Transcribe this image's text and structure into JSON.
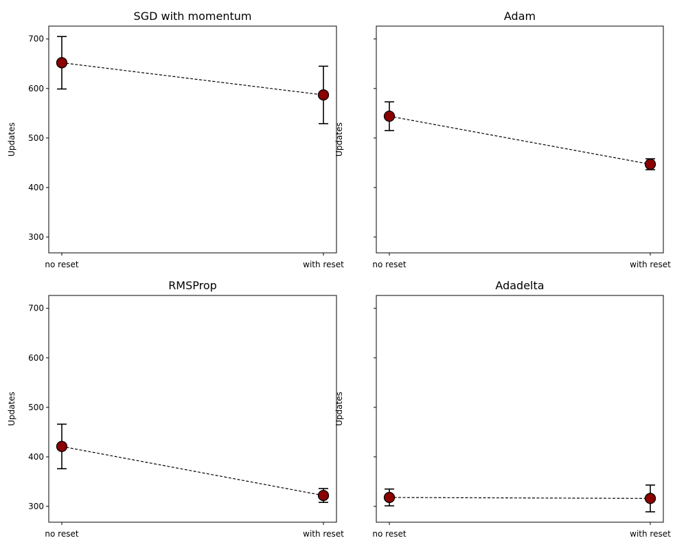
{
  "chart_data": [
    {
      "type": "scatter",
      "title": "SGD with momentum",
      "ylabel": "Updates",
      "categories": [
        "no reset",
        "with reset"
      ],
      "values": [
        652,
        587
      ],
      "errors": [
        53,
        58
      ],
      "ylim": [
        268,
        726
      ],
      "yticks": [
        300,
        400,
        500,
        600,
        700
      ],
      "show_ytick_labels": true,
      "point_color": "#8b0000"
    },
    {
      "type": "scatter",
      "title": "Adam",
      "ylabel": "Updates",
      "categories": [
        "no reset",
        "with reset"
      ],
      "values": [
        544,
        447
      ],
      "errors": [
        29,
        11
      ],
      "ylim": [
        268,
        726
      ],
      "yticks": [
        300,
        400,
        500,
        600,
        700
      ],
      "show_ytick_labels": false,
      "point_color": "#8b0000"
    },
    {
      "type": "scatter",
      "title": "RMSProp",
      "ylabel": "Updates",
      "categories": [
        "no reset",
        "with reset"
      ],
      "values": [
        421,
        322
      ],
      "errors": [
        45,
        14
      ],
      "ylim": [
        268,
        726
      ],
      "yticks": [
        300,
        400,
        500,
        600,
        700
      ],
      "show_ytick_labels": true,
      "point_color": "#8b0000"
    },
    {
      "type": "scatter",
      "title": "Adadelta",
      "ylabel": "Updates",
      "categories": [
        "no reset",
        "with reset"
      ],
      "values": [
        318,
        316
      ],
      "errors": [
        17,
        27
      ],
      "ylim": [
        268,
        726
      ],
      "yticks": [
        300,
        400,
        500,
        600,
        700
      ],
      "show_ytick_labels": false,
      "point_color": "#8b0000"
    }
  ]
}
